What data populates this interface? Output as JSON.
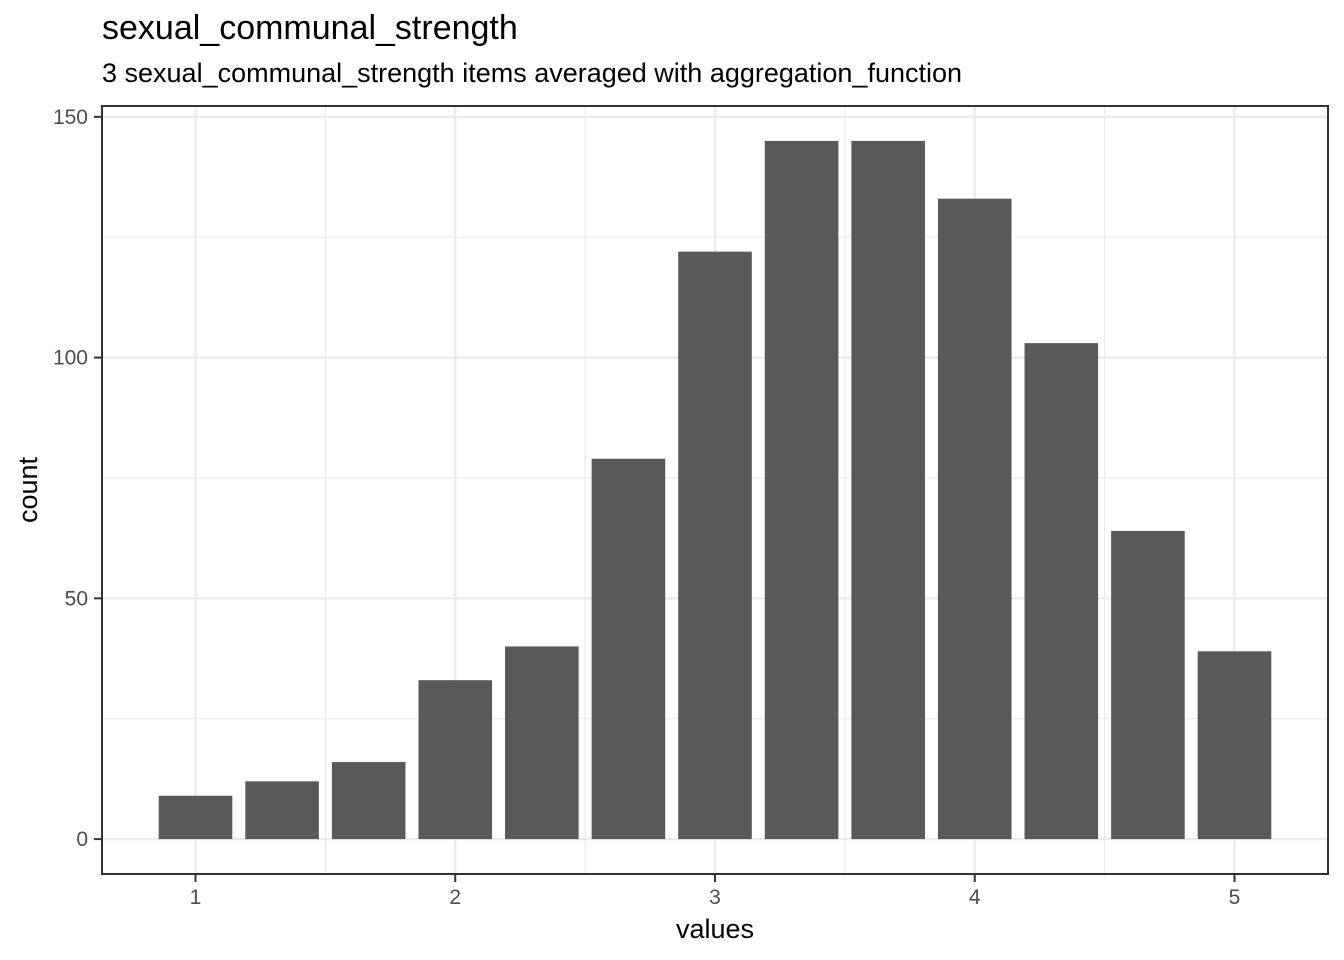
{
  "chart_data": {
    "type": "bar",
    "title": "sexual_communal_strength",
    "subtitle": "3 sexual_communal_strength items averaged with aggregation_function",
    "xlabel": "values",
    "ylabel": "count",
    "bin_width": 0.3333,
    "bins": [
      {
        "x": 1.0,
        "count": 9
      },
      {
        "x": 1.3333,
        "count": 12
      },
      {
        "x": 1.6667,
        "count": 16
      },
      {
        "x": 2.0,
        "count": 33
      },
      {
        "x": 2.3333,
        "count": 40
      },
      {
        "x": 2.6667,
        "count": 79
      },
      {
        "x": 3.0,
        "count": 122
      },
      {
        "x": 3.3333,
        "count": 145
      },
      {
        "x": 3.6667,
        "count": 145
      },
      {
        "x": 4.0,
        "count": 133
      },
      {
        "x": 4.3333,
        "count": 103
      },
      {
        "x": 4.6667,
        "count": 64
      },
      {
        "x": 5.0,
        "count": 39
      }
    ],
    "xlim": [
      0.64,
      5.36
    ],
    "ylim": [
      -7.25,
      152.25
    ],
    "xticks": [
      1,
      2,
      3,
      4,
      5
    ],
    "yticks": [
      0,
      50,
      100,
      150
    ],
    "grid": true,
    "bar_color": "#595959",
    "grid_color": "#ebebeb"
  }
}
